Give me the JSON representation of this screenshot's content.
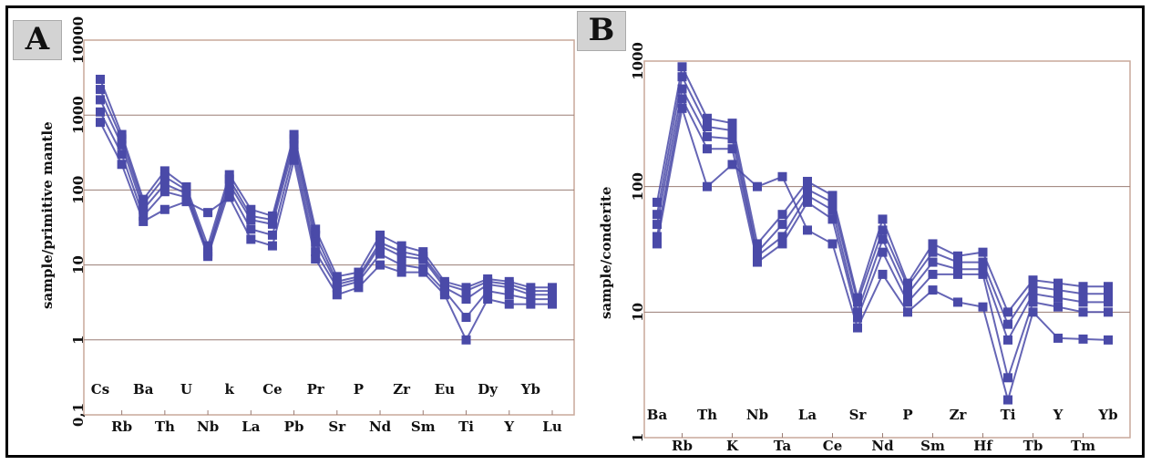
{
  "chart_data": [
    {
      "type": "line",
      "panel_label": "A",
      "ylabel": "sample/primitive mantle",
      "yscale": "log",
      "ylim": [
        0.1,
        10000
      ],
      "y_tick_labels": [
        "0,1",
        "1",
        "10",
        "100",
        "1000",
        "10000"
      ],
      "categories": [
        "Cs",
        "Rb",
        "Ba",
        "Th",
        "U",
        "Nb",
        "k",
        "La",
        "Ce",
        "Pb",
        "Pr",
        "Sr",
        "P",
        "Nd",
        "Zr",
        "Sm",
        "Eu",
        "Ti",
        "Dy",
        "Y",
        "Yb",
        "Lu"
      ],
      "series": [
        {
          "values": [
            3000,
            550,
            75,
            180,
            110,
            18,
            160,
            55,
            45,
            550,
            30,
            7,
            8,
            25,
            18,
            15,
            6,
            5,
            6.5,
            6,
            5,
            5
          ]
        },
        {
          "values": [
            2200,
            480,
            65,
            150,
            100,
            15,
            140,
            45,
            40,
            480,
            25,
            6,
            7,
            20,
            15,
            13,
            5.5,
            4.5,
            6,
            5.5,
            4.5,
            4.5
          ]
        },
        {
          "values": [
            1600,
            400,
            55,
            120,
            90,
            14,
            120,
            40,
            35,
            400,
            20,
            5.5,
            6.5,
            18,
            13,
            12,
            5,
            3.5,
            5.5,
            5,
            4,
            4
          ]
        },
        {
          "values": [
            1100,
            300,
            45,
            95,
            80,
            13,
            100,
            30,
            25,
            320,
            15,
            5,
            6,
            14,
            10,
            9,
            4.5,
            2,
            4.5,
            4,
            3.5,
            3.5
          ]
        },
        {
          "values": [
            800,
            220,
            38,
            55,
            70,
            50,
            80,
            22,
            18,
            250,
            12,
            4,
            5,
            10,
            8,
            8,
            4,
            1,
            3.5,
            3,
            3,
            3
          ]
        }
      ],
      "color": "#4a4aa8",
      "grid": true
    },
    {
      "type": "line",
      "panel_label": "B",
      "ylabel": "sample/conderite",
      "yscale": "log",
      "ylim": [
        1,
        1000
      ],
      "y_tick_labels": [
        "1",
        "10",
        "100",
        "1000"
      ],
      "categories": [
        "Ba",
        "Rb",
        "Th",
        "K",
        "Nb",
        "Ta",
        "La",
        "Ce",
        "Sr",
        "Nd",
        "P",
        "Sm",
        "Zr",
        "Hf",
        "Ti",
        "Tb",
        "Y",
        "Tm",
        "Yb"
      ],
      "series": [
        {
          "values": [
            75,
            900,
            350,
            320,
            35,
            60,
            110,
            85,
            13,
            55,
            17,
            35,
            28,
            30,
            10,
            18,
            17,
            16,
            16
          ]
        },
        {
          "values": [
            60,
            750,
            300,
            280,
            30,
            50,
            95,
            75,
            12,
            45,
            16,
            30,
            25,
            25,
            8,
            16,
            15,
            14,
            14
          ]
        },
        {
          "values": [
            50,
            600,
            250,
            240,
            28,
            40,
            85,
            65,
            10,
            38,
            14,
            25,
            22,
            22,
            6,
            14,
            13,
            12,
            12
          ]
        },
        {
          "values": [
            40,
            500,
            200,
            200,
            25,
            35,
            75,
            55,
            9,
            30,
            12,
            20,
            20,
            20,
            3,
            12,
            11,
            10,
            10
          ]
        },
        {
          "values": [
            35,
            420,
            100,
            150,
            100,
            120,
            45,
            35,
            7.5,
            20,
            10,
            15,
            12,
            11,
            2,
            10,
            6.2,
            6.1,
            6
          ]
        }
      ],
      "color": "#4a4aa8",
      "grid": true
    }
  ]
}
